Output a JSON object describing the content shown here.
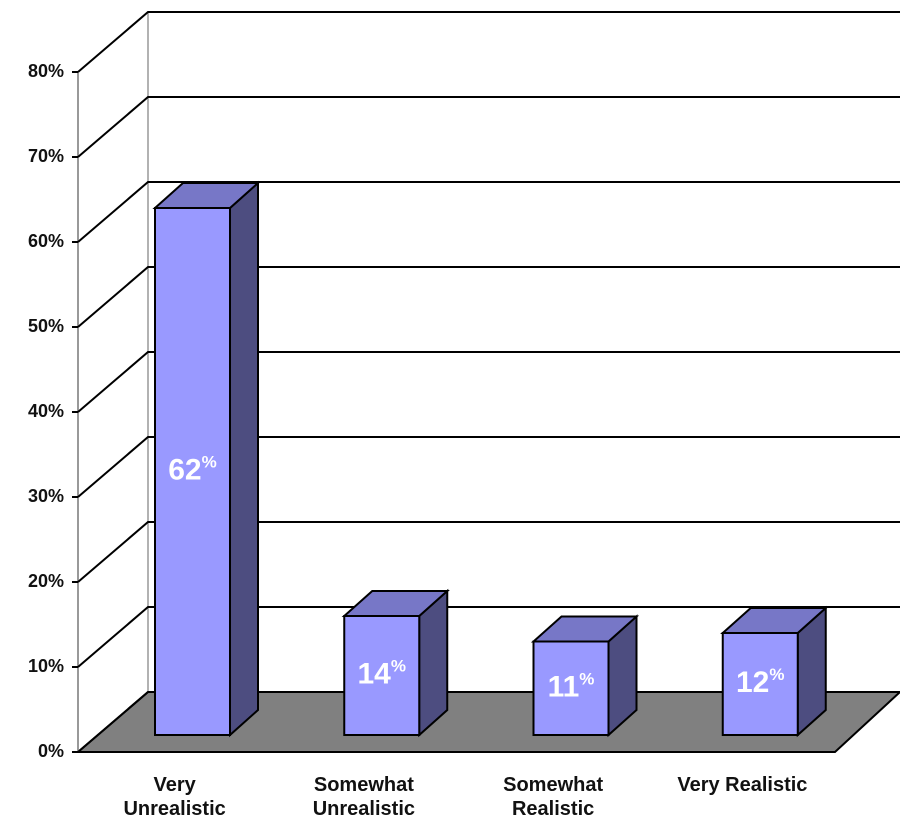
{
  "chart_data": {
    "type": "bar3d",
    "categories": [
      "Very\nUnrealistic",
      "Somewhat\nUnrealistic",
      "Somewhat\nRealistic",
      "Very Realistic"
    ],
    "values": [
      62,
      14,
      11,
      12
    ],
    "value_labels": [
      "62%",
      "14%",
      "11%",
      "12%"
    ],
    "color": "#9999ff",
    "ylim": [
      0,
      80
    ],
    "yticks": [
      {
        "value": 0,
        "label": "0%"
      },
      {
        "value": 10,
        "label": "10%"
      },
      {
        "value": 20,
        "label": "20%"
      },
      {
        "value": 30,
        "label": "30%"
      },
      {
        "value": 40,
        "label": "40%"
      },
      {
        "value": 50,
        "label": "50%"
      },
      {
        "value": 60,
        "label": "60%"
      },
      {
        "value": 70,
        "label": "70%"
      },
      {
        "value": 80,
        "label": "80%"
      }
    ],
    "grid": true
  }
}
